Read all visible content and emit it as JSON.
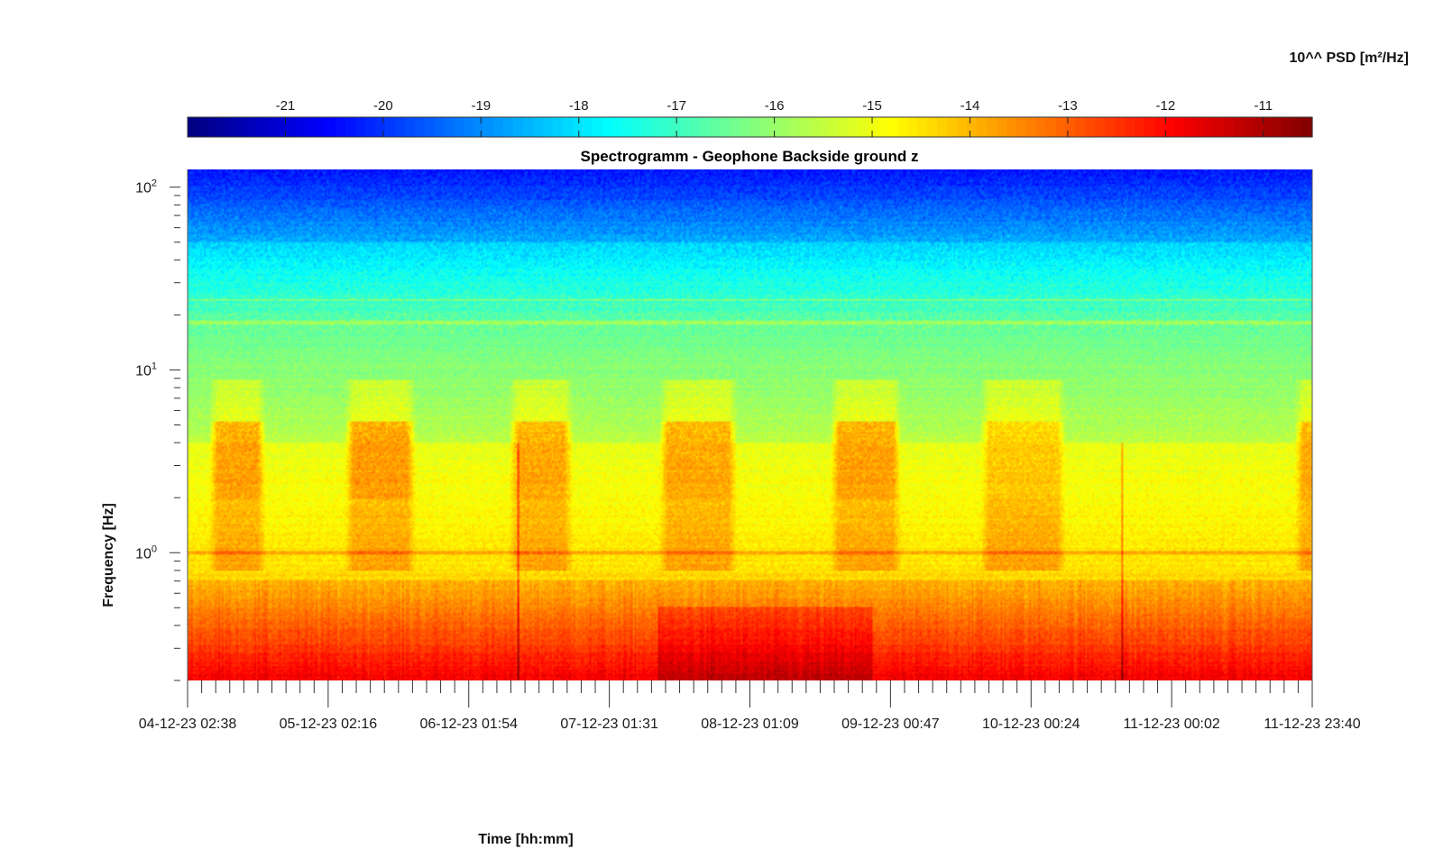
{
  "chart_data": {
    "type": "heatmap",
    "title": "Spectrogramm - Geophone Backside ground z",
    "xlabel": "Time [hh:mm]",
    "ylabel": "Frequency [Hz]",
    "colorbar": {
      "label": "10^^ PSD [m²/Hz]",
      "ticks": [
        "-21",
        "-20",
        "-19",
        "-18",
        "-17",
        "-16",
        "-15",
        "-14",
        "-13",
        "-12",
        "-11"
      ],
      "range": [
        -22.0,
        -10.5
      ],
      "colormap": "jet",
      "position": "top"
    },
    "y_axis": {
      "scale": "log",
      "range_hz": [
        0.2,
        125
      ],
      "tick_values": [
        1,
        10,
        100
      ]
    },
    "x_axis": {
      "tick_labels": [
        "04-12-23 02:38",
        "05-12-23 02:16",
        "06-12-23 01:54",
        "07-12-23 01:31",
        "08-12-23 01:09",
        "09-12-23 00:47",
        "10-12-23 00:24",
        "11-12-23 00:02",
        "11-12-23 23:40"
      ],
      "minor_ticks_per_interval": 10
    },
    "grid": false,
    "activity_bursts": [
      {
        "start_day": 0.15,
        "end_day": 0.55,
        "peak_log10_psd": -13.3
      },
      {
        "start_day": 1.1,
        "end_day": 1.6,
        "peak_log10_psd": -13.2
      },
      {
        "start_day": 2.25,
        "end_day": 2.7,
        "peak_log10_psd": -13.4
      },
      {
        "start_day": 3.3,
        "end_day": 3.85,
        "peak_log10_psd": -13.4
      },
      {
        "start_day": 4.5,
        "end_day": 5.0,
        "peak_log10_psd": -13.3
      },
      {
        "start_day": 5.55,
        "end_day": 6.15,
        "peak_log10_psd": -13.9
      },
      {
        "start_day": 7.75,
        "end_day": 8.0,
        "peak_log10_psd": -13.4
      }
    ]
  }
}
